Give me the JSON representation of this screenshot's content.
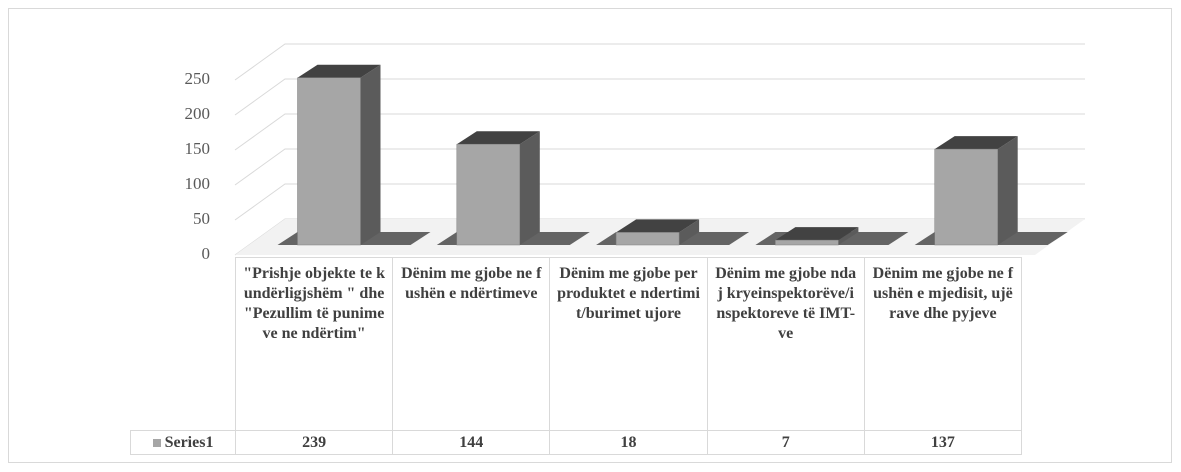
{
  "chart_data": {
    "type": "bar3d",
    "categories": [
      "\"Prishje objekte te kundërligjshëm \" dhe \"Pezullim të punimeve ne ndërtim\"",
      "Dënim me gjobe ne fushën e ndërtimeve",
      "Dënim me gjobe per produktet e ndertimit/burimet ujore",
      "Dënim me gjobe ndaj kryeinspektorëve/inspektoreve të IMT-ve",
      "Dënim me gjobe ne fushën e mjedisit, ujërave dhe pyjeve"
    ],
    "series": [
      {
        "name": "Series1",
        "color": "#a6a6a6",
        "values": [
          239,
          144,
          18,
          7,
          137
        ]
      }
    ],
    "ylim": [
      0,
      250
    ],
    "yticks": [
      0,
      50,
      100,
      150,
      200,
      250
    ],
    "grid": true,
    "data_table": true
  }
}
